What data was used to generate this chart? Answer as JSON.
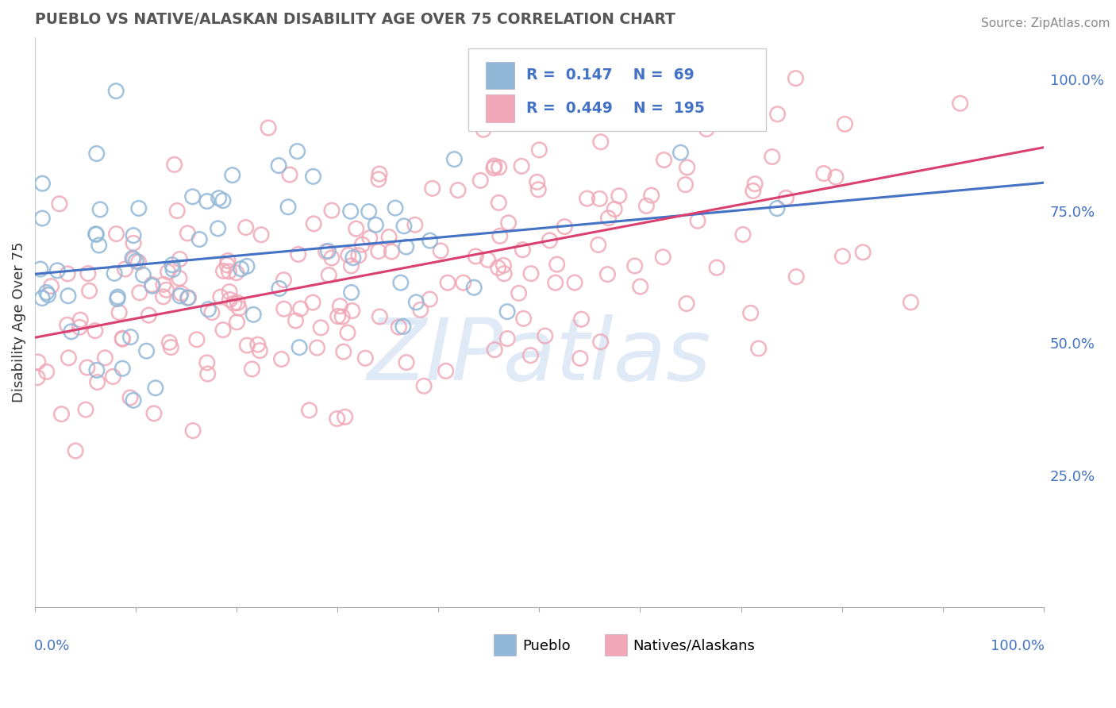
{
  "title": "PUEBLO VS NATIVE/ALASKAN DISABILITY AGE OVER 75 CORRELATION CHART",
  "source": "Source: ZipAtlas.com",
  "ylabel": "Disability Age Over 75",
  "ylabel_right_ticks": [
    "25.0%",
    "50.0%",
    "75.0%",
    "100.0%"
  ],
  "ylabel_right_vals": [
    0.25,
    0.5,
    0.75,
    1.0
  ],
  "pueblo_R": 0.147,
  "pueblo_N": 69,
  "native_R": 0.449,
  "native_N": 195,
  "pueblo_color": "#92b8d8",
  "pueblo_edge_color": "#92b8d8",
  "native_color": "#f0a8b8",
  "native_edge_color": "#f0a8b8",
  "pueblo_line_color": "#4472c4",
  "native_line_color": "#d94070",
  "background_color": "#ffffff",
  "watermark": "ZIPatlas",
  "watermark_color_r": 0.78,
  "watermark_color_g": 0.85,
  "watermark_color_b": 0.95,
  "title_color": "#555555",
  "source_color": "#888888",
  "grid_color": "#dddddd",
  "axis_label_color": "#4472c4",
  "legend_text_color": "#4472c4",
  "xlim": [
    0.0,
    1.0
  ],
  "ylim": [
    0.0,
    1.08
  ],
  "pueblo_line_y0": 0.645,
  "pueblo_line_y1": 0.7,
  "native_line_y0": 0.555,
  "native_line_y1": 0.735
}
